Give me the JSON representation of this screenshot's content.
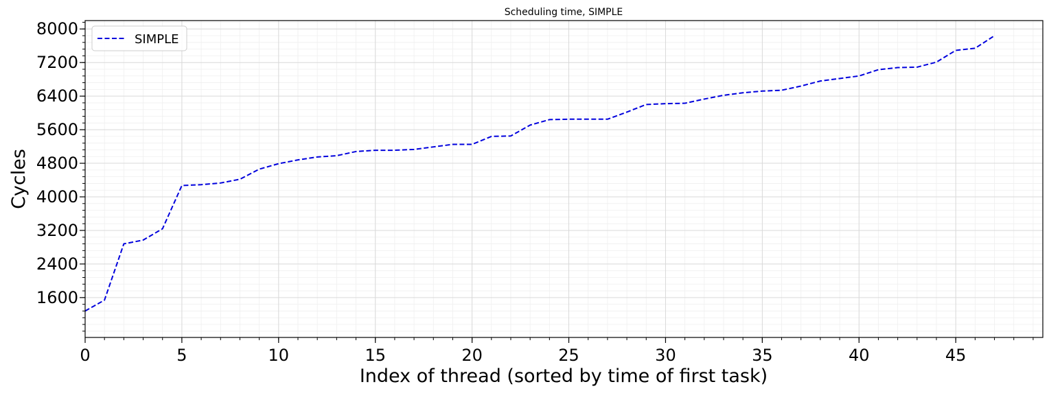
{
  "chart_data": {
    "type": "line",
    "title": "Scheduling time, SIMPLE",
    "xlabel": "Index of thread (sorted by time of first task)",
    "ylabel": "Cycles",
    "xlim": [
      0,
      49.5
    ],
    "ylim": [
      650,
      8200
    ],
    "xticks": [
      0,
      5,
      10,
      15,
      20,
      25,
      30,
      35,
      40,
      45
    ],
    "yticks": [
      1600,
      2400,
      3200,
      4000,
      4800,
      5600,
      6400,
      7200,
      8000
    ],
    "grid": true,
    "minor_grid": true,
    "legend_position": "top-left",
    "x": [
      0,
      1,
      2,
      3,
      4,
      5,
      6,
      7,
      8,
      9,
      10,
      11,
      12,
      13,
      14,
      15,
      16,
      17,
      18,
      19,
      20,
      21,
      22,
      23,
      24,
      25,
      26,
      27,
      28,
      29,
      30,
      31,
      32,
      33,
      34,
      35,
      36,
      37,
      38,
      39,
      40,
      41,
      42,
      43,
      44,
      45,
      46,
      47
    ],
    "series": [
      {
        "name": "SIMPLE",
        "color": "#0000dd",
        "linestyle": "dashed",
        "values": [
          1280,
          1540,
          2880,
          2970,
          3240,
          4270,
          4290,
          4330,
          4420,
          4660,
          4790,
          4880,
          4950,
          4980,
          5080,
          5110,
          5110,
          5130,
          5190,
          5250,
          5250,
          5440,
          5450,
          5710,
          5840,
          5850,
          5850,
          5850,
          6020,
          6200,
          6220,
          6230,
          6330,
          6420,
          6480,
          6520,
          6540,
          6640,
          6760,
          6820,
          6880,
          7030,
          7080,
          7090,
          7210,
          7490,
          7540,
          7840
        ]
      }
    ]
  }
}
